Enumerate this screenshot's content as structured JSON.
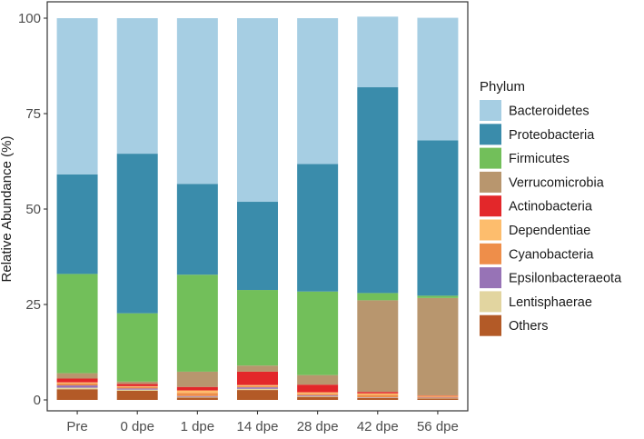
{
  "chart_data": {
    "type": "bar",
    "stacked": true,
    "title": "",
    "xlabel": "",
    "ylabel": "Relative Abundance (%)",
    "ylim": [
      0,
      100
    ],
    "yticks": [
      "0",
      "25",
      "50",
      "75",
      "100"
    ],
    "categories": [
      "Pre",
      "0 dpe",
      "1 dpe",
      "14 dpe",
      "28 dpe",
      "42 dpe",
      "56 dpe"
    ],
    "legend": {
      "title": "Phylum",
      "position": "right"
    },
    "grid": false,
    "series": [
      {
        "name": "Others",
        "color": "#B35A27",
        "values": [
          2.8,
          2.4,
          0.6,
          2.6,
          0.8,
          0.5,
          0.4
        ]
      },
      {
        "name": "Lentisphaerae",
        "color": "#E2D5A0",
        "values": [
          0.4,
          0.3,
          0.2,
          0.3,
          0.2,
          0.1,
          0.1
        ]
      },
      {
        "name": "Epsilonbacteraeota",
        "color": "#9773B6",
        "values": [
          0.6,
          0.3,
          0.2,
          0.4,
          0.2,
          0.1,
          0.1
        ]
      },
      {
        "name": "Cyanobacteria",
        "color": "#EE8E4A",
        "values": [
          0.5,
          0.4,
          0.8,
          0.3,
          0.4,
          0.6,
          0.3
        ]
      },
      {
        "name": "Dependentiae",
        "color": "#FDBD6D",
        "values": [
          0.3,
          0.2,
          0.7,
          0.3,
          0.4,
          0.4,
          0.2
        ]
      },
      {
        "name": "Actinobacteria",
        "color": "#E3272A",
        "values": [
          1.0,
          0.6,
          0.9,
          3.5,
          2.0,
          0.4,
          0.1
        ]
      },
      {
        "name": "Verrucomicrobia",
        "color": "#B8966E",
        "values": [
          1.4,
          0.6,
          4.0,
          1.6,
          2.5,
          24.0,
          25.5
        ]
      },
      {
        "name": "Firmicutes",
        "color": "#72BF5A",
        "values": [
          26.0,
          17.9,
          25.4,
          19.8,
          21.9,
          1.9,
          0.6
        ]
      },
      {
        "name": "Proteobacteria",
        "color": "#3A8CAB",
        "values": [
          26.1,
          41.8,
          23.8,
          23.1,
          33.4,
          53.9,
          40.7
        ]
      },
      {
        "name": "Bacteroidetes",
        "color": "#A6CEE3",
        "values": [
          40.9,
          35.5,
          43.4,
          48.1,
          38.2,
          18.5,
          32.1
        ]
      }
    ]
  }
}
